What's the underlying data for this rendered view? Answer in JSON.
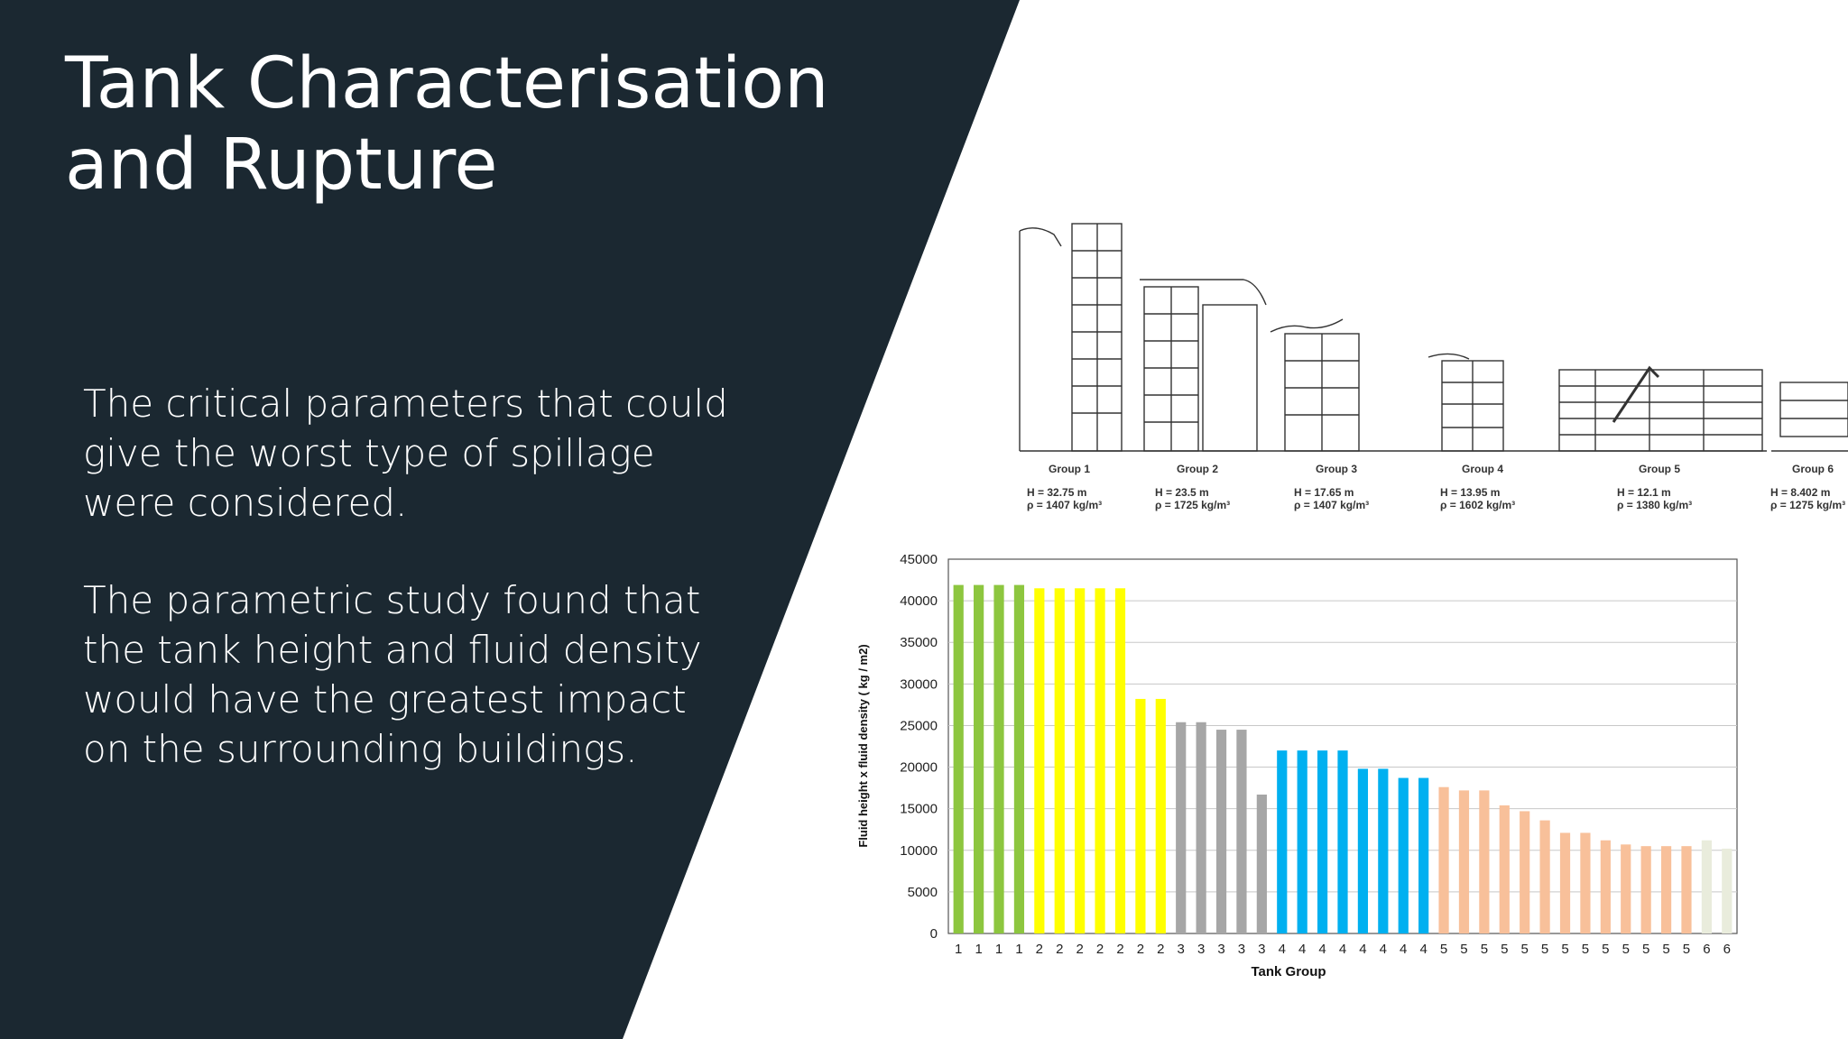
{
  "slide": {
    "title_lines": [
      "Tank Characterisation",
      "and Rupture"
    ],
    "paragraphs": [
      "The critical parameters that could give the worst type of spillage were considered.",
      "The parametric study found that the tank height and fluid density would have the greatest impact on the surrounding buildings."
    ],
    "colors": {
      "panel": "#1b2831",
      "text": "#ffffff",
      "background": "#ffffff"
    }
  },
  "diagram": {
    "groups": [
      {
        "name": "Group 1",
        "height": "H = 32.75 m",
        "density": "ρ = 1407 kg/m³"
      },
      {
        "name": "Group 2",
        "height": "H = 23.5 m",
        "density": "ρ = 1725 kg/m³"
      },
      {
        "name": "Group 3",
        "height": "H = 17.65 m",
        "density": "ρ = 1407 kg/m³"
      },
      {
        "name": "Group 4",
        "height": "H = 13.95 m",
        "density": "ρ = 1602 kg/m³"
      },
      {
        "name": "Group 5",
        "height": "H = 12.1 m",
        "density": "ρ = 1380 kg/m³"
      },
      {
        "name": "Group 6",
        "height": "H = 8.402 m",
        "density": "ρ = 1275 kg/m³"
      }
    ]
  },
  "chart_data": {
    "type": "bar",
    "xlabel": "Tank Group",
    "ylabel": "Fluid height x fluid density  ( kg / m2)",
    "ylim": [
      0,
      45000
    ],
    "yticks": [
      0,
      5000,
      10000,
      15000,
      20000,
      25000,
      30000,
      35000,
      40000,
      45000
    ],
    "grid": true,
    "categories": [
      "1",
      "1",
      "1",
      "1",
      "2",
      "2",
      "2",
      "2",
      "2",
      "2",
      "2",
      "3",
      "3",
      "3",
      "3",
      "3",
      "4",
      "4",
      "4",
      "4",
      "4",
      "4",
      "4",
      "4",
      "5",
      "5",
      "5",
      "5",
      "5",
      "5",
      "5",
      "5",
      "5",
      "5",
      "5",
      "5",
      "5",
      "6",
      "6"
    ],
    "values": [
      41900,
      41900,
      41900,
      41900,
      41500,
      41500,
      41500,
      41500,
      41500,
      28200,
      28200,
      25400,
      25400,
      24500,
      24500,
      16700,
      22000,
      22000,
      22000,
      22000,
      19800,
      19800,
      18700,
      18700,
      17600,
      17200,
      17200,
      15400,
      14700,
      13600,
      12100,
      12100,
      11200,
      10700,
      10500,
      10500,
      10500,
      11200,
      10200
    ],
    "group_colors": {
      "1": "#8dc63f",
      "2": "#ffff00",
      "3": "#a6a6a6",
      "4": "#00b0f0",
      "5": "#f8c09a",
      "6": "#e9ecdc"
    }
  }
}
